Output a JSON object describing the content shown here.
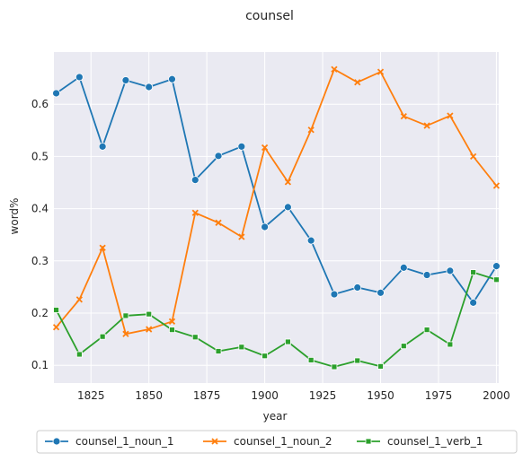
{
  "chart_data": {
    "type": "line",
    "title": "counsel",
    "xlabel": "year",
    "ylabel": "word%",
    "xlim": [
      1809,
      2001
    ],
    "ylim": [
      0.066,
      0.7
    ],
    "xticks": [
      1825,
      1850,
      1875,
      1900,
      1925,
      1950,
      1975,
      2000
    ],
    "yticks": [
      0.1,
      0.2,
      0.3,
      0.4,
      0.5,
      0.6
    ],
    "x": [
      1810,
      1820,
      1830,
      1840,
      1850,
      1860,
      1870,
      1880,
      1890,
      1900,
      1910,
      1920,
      1930,
      1940,
      1950,
      1960,
      1970,
      1980,
      1990,
      2000
    ],
    "series": [
      {
        "name": "counsel_1_noun_1",
        "color": "#1f77b4",
        "marker": "circle",
        "values": [
          0.621,
          0.652,
          0.519,
          0.646,
          0.633,
          0.648,
          0.455,
          0.501,
          0.519,
          0.365,
          0.403,
          0.339,
          0.236,
          0.249,
          0.239,
          0.287,
          0.273,
          0.281,
          0.22,
          0.29
        ]
      },
      {
        "name": "counsel_1_noun_2",
        "color": "#ff7f0e",
        "marker": "x",
        "values": [
          0.173,
          0.226,
          0.325,
          0.16,
          0.169,
          0.184,
          0.392,
          0.373,
          0.346,
          0.517,
          0.451,
          0.551,
          0.667,
          0.642,
          0.662,
          0.577,
          0.559,
          0.578,
          0.5,
          0.444
        ]
      },
      {
        "name": "counsel_1_verb_1",
        "color": "#2ca02c",
        "marker": "square",
        "values": [
          0.206,
          0.121,
          0.155,
          0.195,
          0.198,
          0.168,
          0.154,
          0.127,
          0.135,
          0.118,
          0.145,
          0.11,
          0.097,
          0.109,
          0.098,
          0.137,
          0.168,
          0.14,
          0.278,
          0.264
        ]
      }
    ],
    "grid": true,
    "legend": "bottom"
  }
}
